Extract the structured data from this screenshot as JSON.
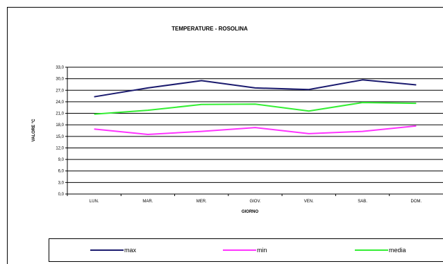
{
  "chart_data": {
    "type": "line",
    "title": "TEMPERATURE - ROSOLINA",
    "xlabel": "GIORNO",
    "ylabel": "VALORE °C",
    "categories": [
      "LUN.",
      "MAR.",
      "MER.",
      "GIOV.",
      "VEN.",
      "SAB.",
      "DOM."
    ],
    "ylim": [
      0,
      33
    ],
    "yticks": [
      "0,0",
      "3,0",
      "6,0",
      "9,0",
      "12,0",
      "15,0",
      "18,0",
      "21,0",
      "24,0",
      "27,0",
      "30,0",
      "33,0"
    ],
    "grid": true,
    "legend_position": "bottom",
    "series": [
      {
        "name": "max",
        "color": "#1a1a6e",
        "values": [
          25.3,
          27.6,
          29.5,
          27.6,
          27.2,
          29.7,
          28.4
        ]
      },
      {
        "name": "min",
        "color": "#ff33ff",
        "values": [
          16.9,
          15.5,
          16.3,
          17.3,
          15.7,
          16.3,
          17.7
        ]
      },
      {
        "name": "media",
        "color": "#33ee33",
        "values": [
          20.8,
          21.8,
          23.3,
          23.4,
          21.6,
          23.8,
          23.6
        ]
      }
    ]
  }
}
